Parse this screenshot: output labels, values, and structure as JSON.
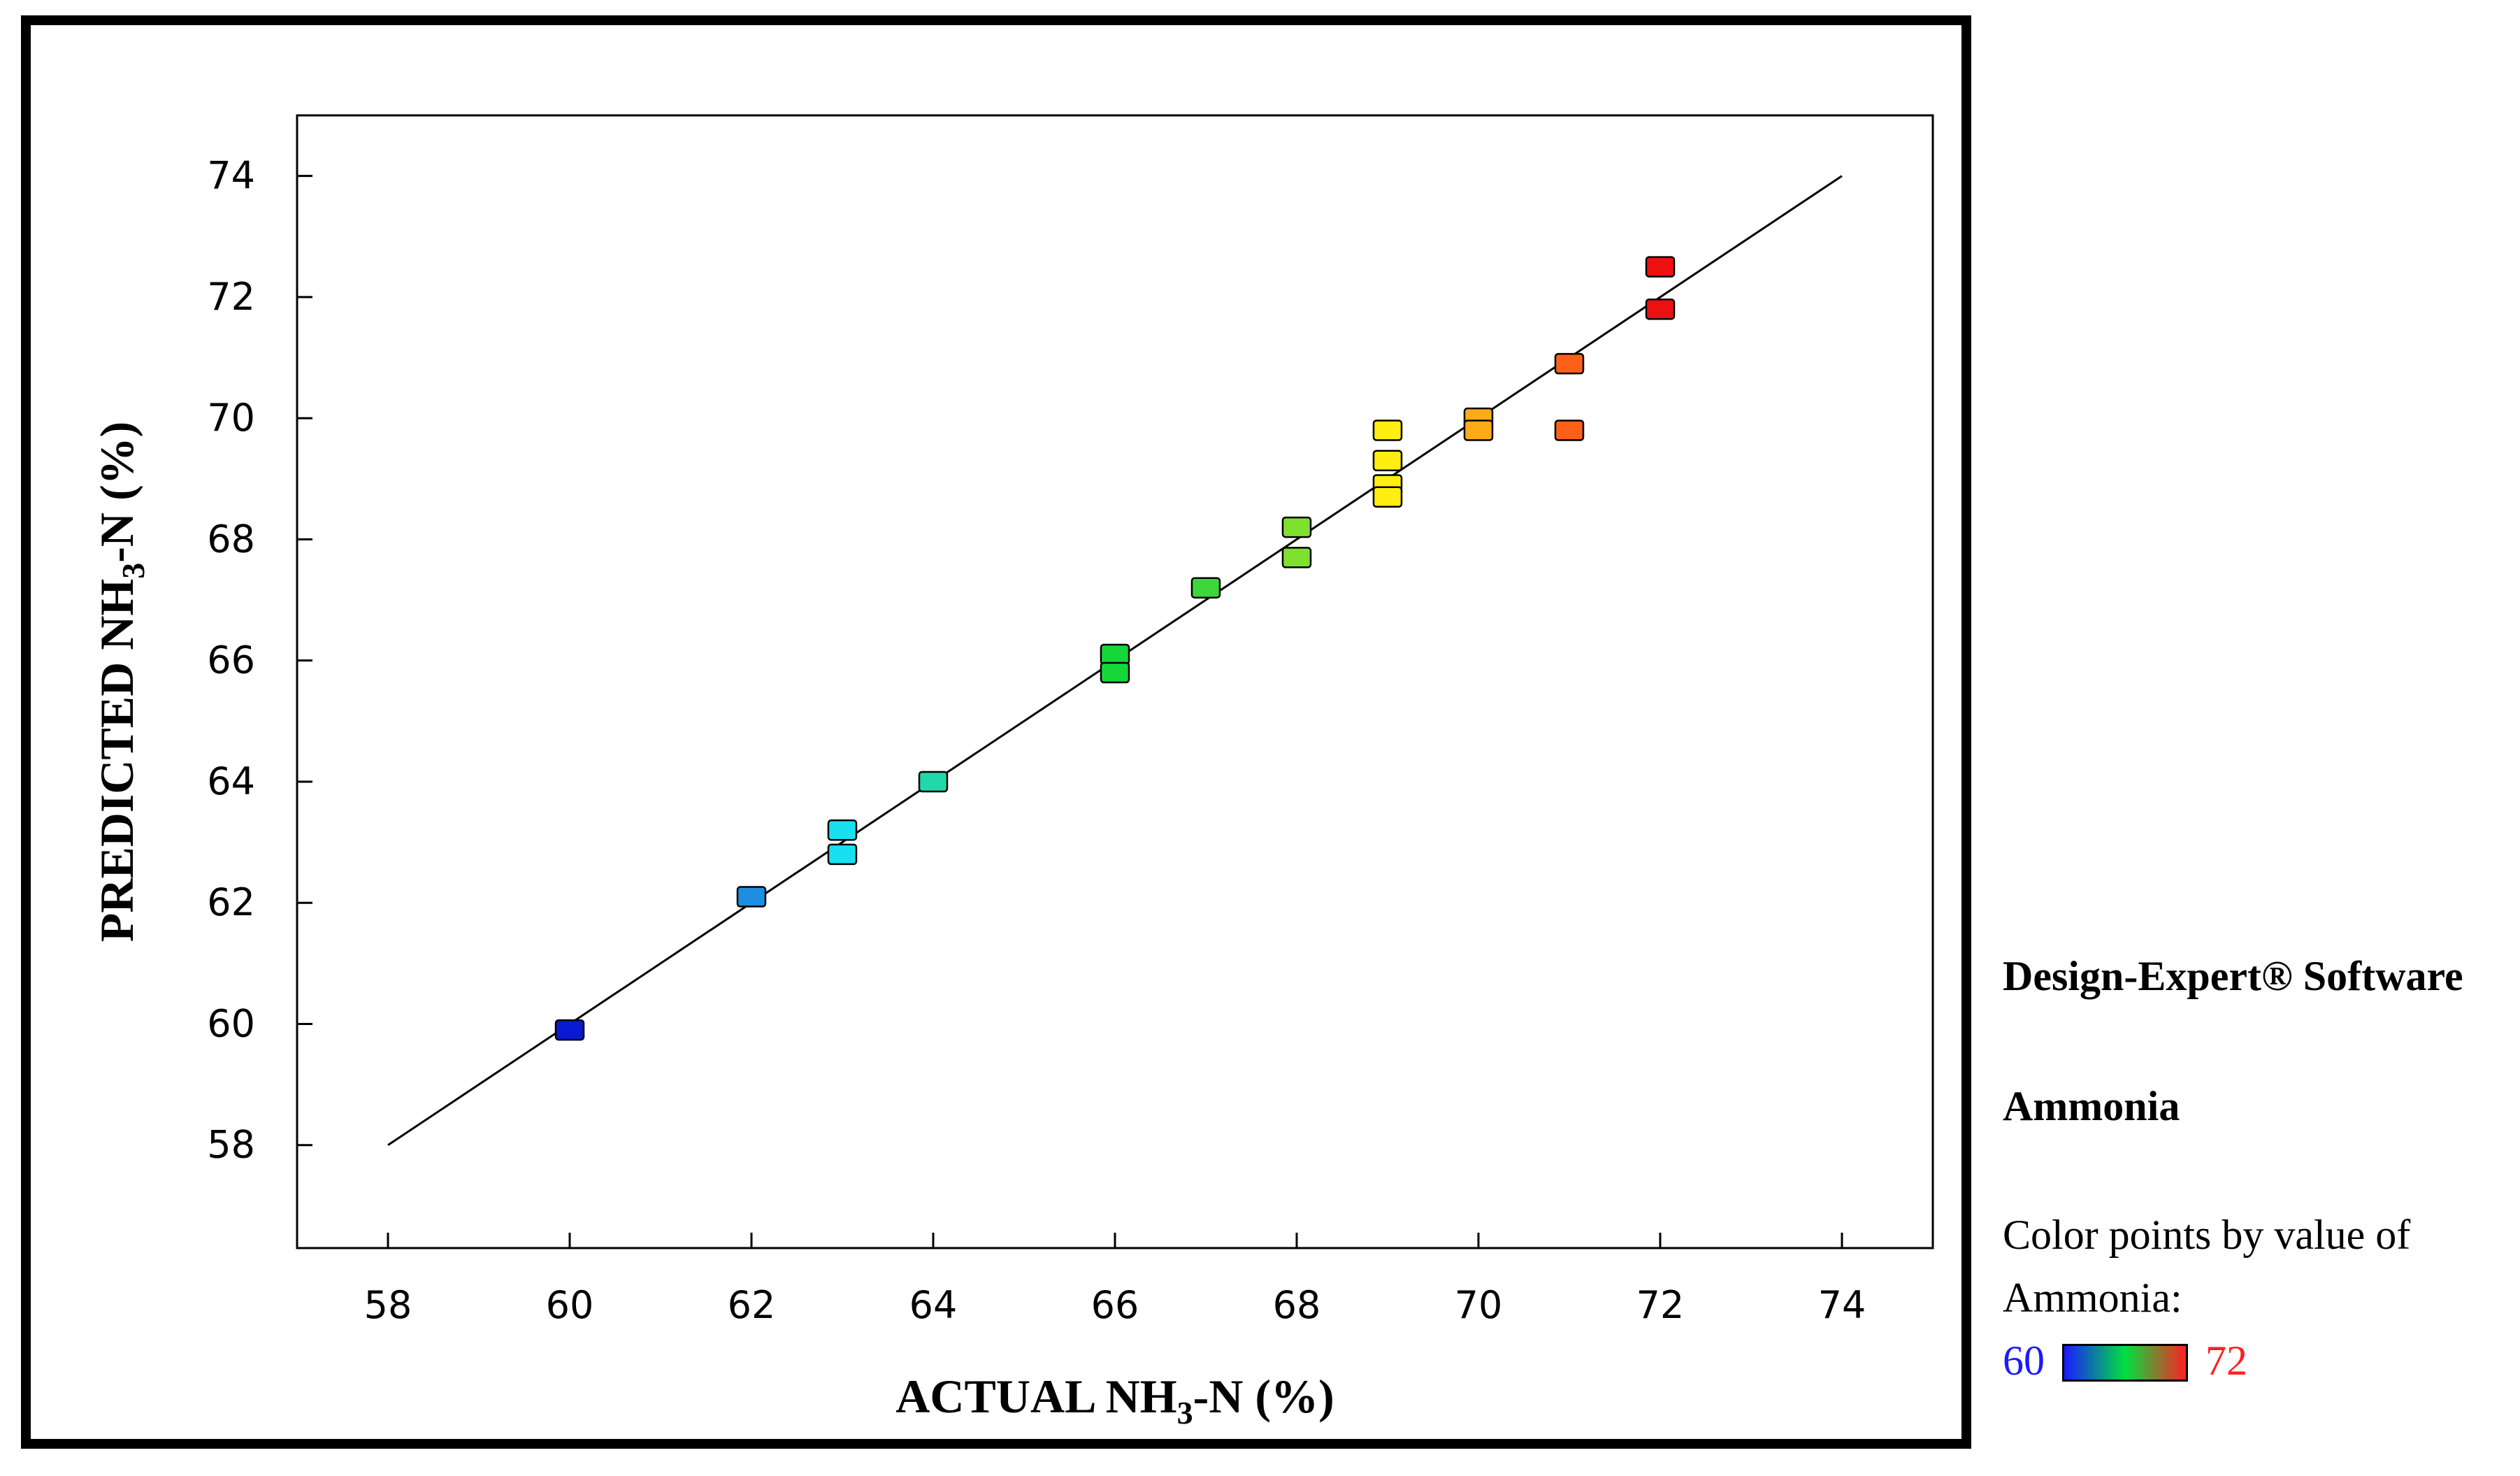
{
  "chart_data": {
    "type": "scatter",
    "xlabel": "ACTUAL NH3-N (%)",
    "ylabel": "PREDICTED NH3-N (%)",
    "xlim": [
      57,
      75
    ],
    "ylim": [
      56.3,
      75
    ],
    "x_ticks": [
      58,
      60,
      62,
      64,
      66,
      68,
      70,
      72,
      74
    ],
    "y_ticks": [
      58,
      60,
      62,
      64,
      66,
      68,
      70,
      72,
      74
    ],
    "grid": false,
    "reference_line": {
      "x": [
        58,
        74
      ],
      "y": [
        58,
        74
      ]
    },
    "points": [
      {
        "x": 60,
        "y": 59.9,
        "color": "#0a1ad0"
      },
      {
        "x": 62,
        "y": 62.1,
        "color": "#1e8fe0"
      },
      {
        "x": 63,
        "y": 63.2,
        "color": "#18e0f0"
      },
      {
        "x": 63,
        "y": 62.8,
        "color": "#18e0f0"
      },
      {
        "x": 64,
        "y": 64.0,
        "color": "#20d8a8"
      },
      {
        "x": 66,
        "y": 66.1,
        "color": "#14d838"
      },
      {
        "x": 66,
        "y": 65.8,
        "color": "#14d838"
      },
      {
        "x": 67,
        "y": 67.2,
        "color": "#3ed63a"
      },
      {
        "x": 68,
        "y": 68.2,
        "color": "#80e030"
      },
      {
        "x": 68,
        "y": 67.7,
        "color": "#80e030"
      },
      {
        "x": 69,
        "y": 69.8,
        "color": "#ffee10"
      },
      {
        "x": 69,
        "y": 69.3,
        "color": "#ffee10"
      },
      {
        "x": 69,
        "y": 68.9,
        "color": "#ffee10"
      },
      {
        "x": 69,
        "y": 68.7,
        "color": "#ffee10"
      },
      {
        "x": 70,
        "y": 70.0,
        "color": "#ffaa18"
      },
      {
        "x": 70,
        "y": 69.8,
        "color": "#ffaa18"
      },
      {
        "x": 71,
        "y": 70.9,
        "color": "#ff6018"
      },
      {
        "x": 71,
        "y": 69.8,
        "color": "#ff6018"
      },
      {
        "x": 72,
        "y": 72.5,
        "color": "#ee1010"
      },
      {
        "x": 72,
        "y": 71.8,
        "color": "#ee1010"
      }
    ]
  },
  "side_panel": {
    "software": "Design-Expert® Software",
    "response": "Ammonia",
    "color_note_line1": "Color points by value of",
    "color_note_line2": "Ammonia:",
    "legend_min": "60",
    "legend_max": "72",
    "gradient_colors": [
      "#1a1aff",
      "#00e040",
      "#ff2020"
    ]
  }
}
